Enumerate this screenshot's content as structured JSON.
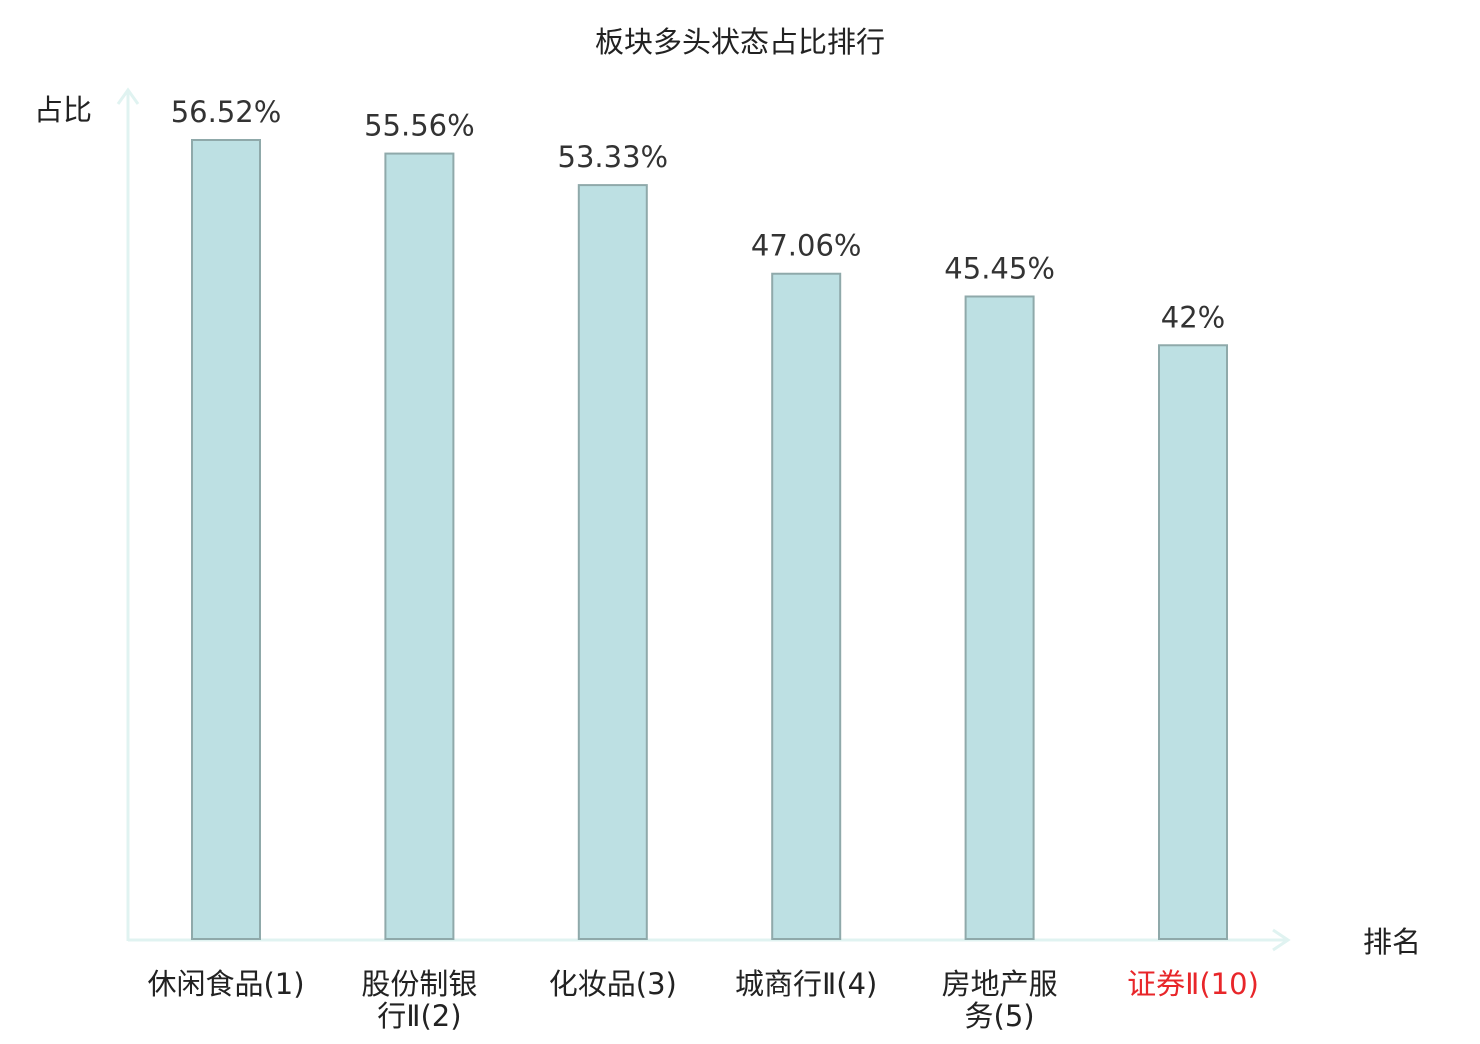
{
  "chart_data": {
    "type": "bar",
    "title": "板块多头状态占比排行",
    "xlabel": "排名",
    "ylabel": "占比",
    "categories": [
      [
        "休闲食品(1)"
      ],
      [
        "股份制银",
        "行Ⅱ(2)"
      ],
      [
        "化妆品(3)"
      ],
      [
        "城商行Ⅱ(4)"
      ],
      [
        "房地产服",
        "务(5)"
      ],
      [
        "证券Ⅱ(10)"
      ]
    ],
    "values": [
      56.52,
      55.56,
      53.33,
      47.06,
      45.45,
      42
    ],
    "value_labels": [
      "56.52%",
      "55.56%",
      "53.33%",
      "47.06%",
      "45.45%",
      "42%"
    ],
    "highlight_index": 5,
    "ylim": [
      0,
      56.52
    ],
    "grid": false,
    "legend": "none"
  },
  "colors": {
    "bar_fill": "#bde0e3",
    "bar_stroke": "#8fa9aa",
    "axis": "#e0f3f1",
    "text": "#333333",
    "label": "#222222",
    "highlight": "#e8262a"
  }
}
